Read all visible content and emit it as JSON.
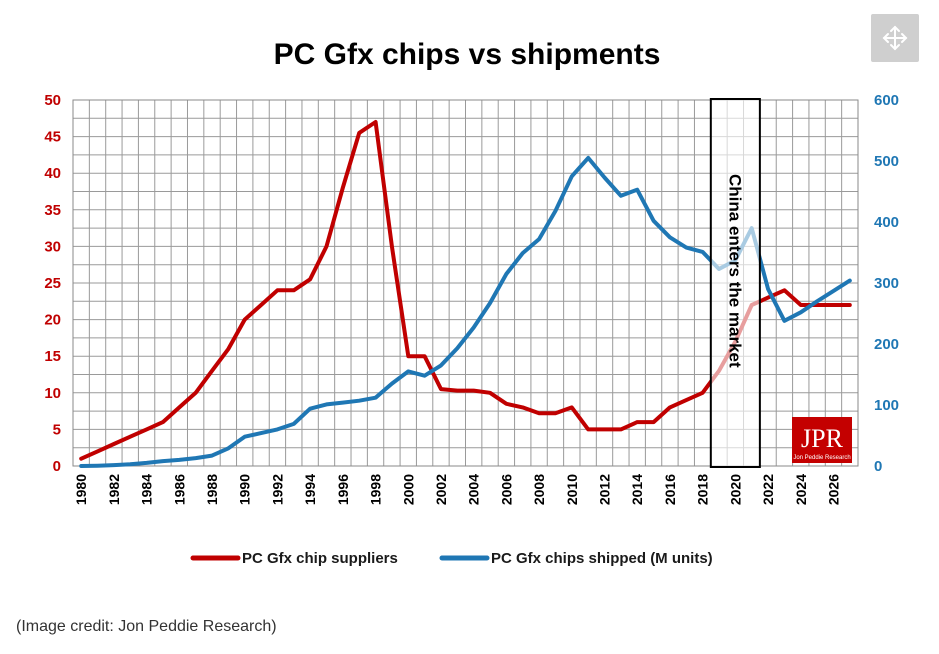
{
  "chart_data": {
    "type": "line",
    "title": "PC Gfx chips vs shipments",
    "x": [
      1980,
      1981,
      1982,
      1983,
      1984,
      1985,
      1986,
      1987,
      1988,
      1989,
      1990,
      1991,
      1992,
      1993,
      1994,
      1995,
      1996,
      1997,
      1998,
      1999,
      2000,
      2001,
      2002,
      2003,
      2004,
      2005,
      2006,
      2007,
      2008,
      2009,
      2010,
      2011,
      2012,
      2013,
      2014,
      2015,
      2016,
      2017,
      2018,
      2019,
      2020,
      2021,
      2022,
      2023,
      2024,
      2025,
      2026,
      2027
    ],
    "x_ticks": [
      "1980",
      "1982",
      "1984",
      "1986",
      "1988",
      "1990",
      "1992",
      "1994",
      "1996",
      "1998",
      "2000",
      "2002",
      "2004",
      "2006",
      "2008",
      "2010",
      "2012",
      "2014",
      "2016",
      "2018",
      "2020",
      "2022",
      "2024",
      "2026"
    ],
    "y_left": {
      "ylim": [
        0,
        50
      ],
      "ticks": [
        "0",
        "5",
        "10",
        "15",
        "20",
        "25",
        "30",
        "35",
        "40",
        "45",
        "50"
      ],
      "color": "#c00000"
    },
    "y_right": {
      "ylim": [
        0,
        600
      ],
      "ticks": [
        "0",
        "100",
        "200",
        "300",
        "400",
        "500",
        "600"
      ],
      "color": "#1f77b4"
    },
    "series": [
      {
        "name": "PC Gfx chip suppliers",
        "axis": "left",
        "color": "#c00000",
        "values": [
          1,
          2,
          3,
          4,
          5,
          6,
          8,
          10,
          13,
          16,
          20,
          22,
          24,
          24,
          25.5,
          30,
          38,
          45.5,
          47,
          30,
          15,
          15,
          10.5,
          10.3,
          10.3,
          10,
          8.5,
          8,
          7.2,
          7.2,
          8,
          5,
          5,
          5,
          6,
          6,
          8,
          9,
          10,
          13,
          17,
          22,
          23,
          24,
          22,
          22,
          22,
          22
        ]
      },
      {
        "name": "PC Gfx chips shipped (M units)",
        "axis": "right",
        "color": "#1f77b4",
        "values": [
          0,
          0.5,
          1.5,
          3,
          5,
          8,
          10,
          13,
          17,
          29,
          48,
          54,
          60,
          69,
          94,
          101,
          104,
          107,
          112,
          135,
          155,
          148,
          165,
          193,
          227,
          267,
          315,
          349,
          372,
          418,
          475,
          505,
          473,
          443,
          453,
          402,
          375,
          358,
          351,
          323,
          337,
          390,
          290,
          238,
          252,
          270,
          287,
          304
        ]
      }
    ],
    "shaded_band": {
      "from": 2019,
      "to": 2021,
      "label": "China enters the market"
    },
    "grid": true,
    "legend_position": "bottom"
  },
  "logo": {
    "main": "JPR",
    "sub": "Jon Peddie Research"
  },
  "caption": "(Image credit: Jon Peddie Research)",
  "expand_icon": "move-arrows-icon"
}
